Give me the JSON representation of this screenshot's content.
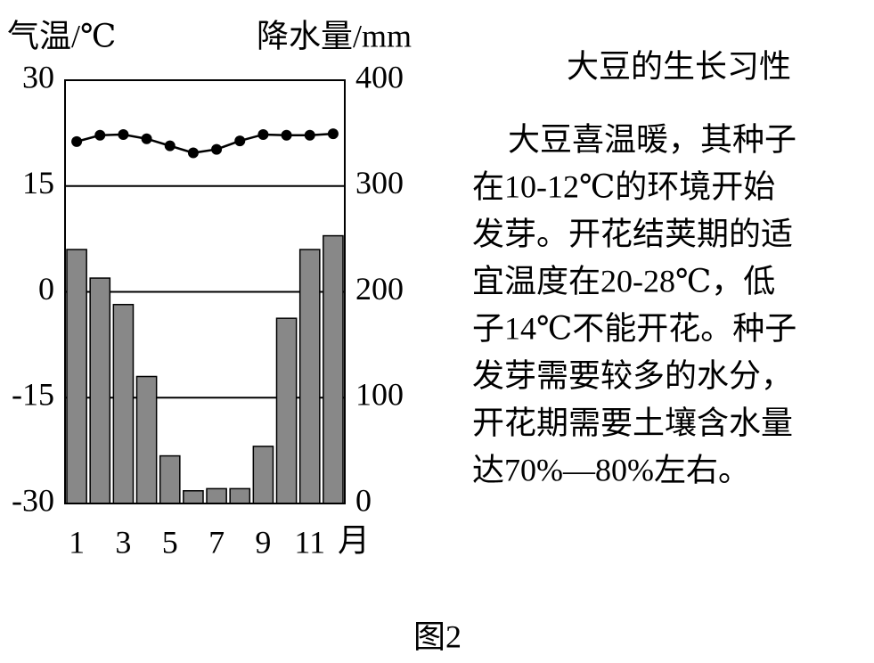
{
  "chart_data": {
    "type": "combo",
    "y_label": "气温/℃",
    "y2_label": "降水量/mm",
    "x_label": "月",
    "categories": [
      "1",
      null,
      "3",
      null,
      "5",
      null,
      "7",
      null,
      "9",
      null,
      "11",
      null
    ],
    "series": [
      {
        "type": "bar",
        "axis": "y2",
        "color": "#888888",
        "values": [
          240,
          213,
          188,
          120,
          45,
          12,
          14,
          14,
          54,
          175,
          240,
          253
        ]
      },
      {
        "type": "line",
        "color": "#000000",
        "values": [
          21.3,
          22.2,
          22.3,
          21.7,
          20.7,
          19.7,
          20.2,
          21.4,
          22.3,
          22.2,
          22.2,
          22.4
        ]
      }
    ],
    "ylim": [
      -30,
      30
    ],
    "yticks": [
      -30,
      -15,
      0,
      15,
      30
    ],
    "y2lim": [
      0,
      400
    ],
    "y2ticks": [
      0,
      100,
      200,
      300,
      400
    ],
    "grid": true
  },
  "text": {
    "title": "大豆的生长习性",
    "lines": [
      "大豆喜温暖，其种子",
      "在10-12℃的环境开始",
      "发芽。开花结荚期的适",
      "宜温度在20-28℃，低",
      "子14℃不能开花。种子",
      "发芽需要较多的水分，",
      "开花期需要土壤含水量",
      "达70%—80%左右。"
    ]
  },
  "caption": "图2"
}
